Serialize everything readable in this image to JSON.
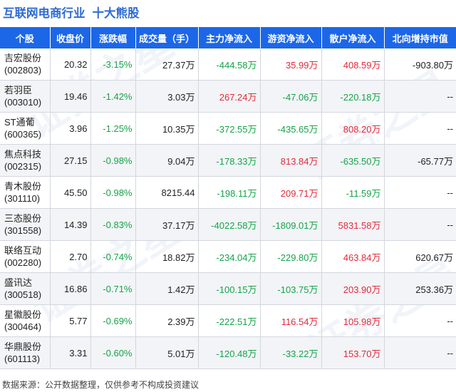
{
  "title": {
    "part1": "互联网电商行业",
    "part2": "十大熊股"
  },
  "colors": {
    "header_bg": "#1c67e8",
    "title": "#2e6bd3",
    "up": "#e2293b",
    "down": "#16a34a"
  },
  "table": {
    "headers": [
      "个股",
      "收盘价",
      "涨跌幅",
      "成交量（手）",
      "主力净流入",
      "游资净流入",
      "散户净流入",
      "北向增持市值"
    ],
    "rows": [
      {
        "name": "吉宏股份",
        "code": "(002803)",
        "close": "20.32",
        "change": "-3.15%",
        "volume": "27.37万",
        "main": "-444.58万",
        "hot": "35.99万",
        "retail": "408.59万",
        "north": "-903.80万"
      },
      {
        "name": "若羽臣",
        "code": "(003010)",
        "close": "19.46",
        "change": "-1.42%",
        "volume": "3.03万",
        "main": "267.24万",
        "hot": "-47.06万",
        "retail": "-220.18万",
        "north": "--"
      },
      {
        "name": "ST通葡",
        "code": "(600365)",
        "close": "3.96",
        "change": "-1.25%",
        "volume": "10.35万",
        "main": "-372.55万",
        "hot": "-435.65万",
        "retail": "808.20万",
        "north": "--"
      },
      {
        "name": "焦点科技",
        "code": "(002315)",
        "close": "27.15",
        "change": "-0.98%",
        "volume": "9.04万",
        "main": "-178.33万",
        "hot": "813.84万",
        "retail": "-635.50万",
        "north": "-65.77万"
      },
      {
        "name": "青木股份",
        "code": "(301110)",
        "close": "45.50",
        "change": "-0.98%",
        "volume": "8215.44",
        "main": "-198.11万",
        "hot": "209.71万",
        "retail": "-11.59万",
        "north": "--"
      },
      {
        "name": "三态股份",
        "code": "(301558)",
        "close": "14.39",
        "change": "-0.83%",
        "volume": "37.17万",
        "main": "-4022.58万",
        "hot": "-1809.01万",
        "retail": "5831.58万",
        "north": "--"
      },
      {
        "name": "联络互动",
        "code": "(002280)",
        "close": "2.70",
        "change": "-0.74%",
        "volume": "18.82万",
        "main": "-234.04万",
        "hot": "-229.80万",
        "retail": "463.84万",
        "north": "620.67万"
      },
      {
        "name": "盛讯达",
        "code": "(300518)",
        "close": "16.86",
        "change": "-0.71%",
        "volume": "1.42万",
        "main": "-100.15万",
        "hot": "-103.75万",
        "retail": "203.90万",
        "north": "253.36万"
      },
      {
        "name": "星徽股份",
        "code": "(300464)",
        "close": "5.77",
        "change": "-0.69%",
        "volume": "2.39万",
        "main": "-222.51万",
        "hot": "116.54万",
        "retail": "105.98万",
        "north": "--"
      },
      {
        "name": "华鼎股份",
        "code": "(601113)",
        "close": "3.31",
        "change": "-0.60%",
        "volume": "5.01万",
        "main": "-120.48万",
        "hot": "-33.22万",
        "retail": "153.70万",
        "north": "--"
      }
    ]
  },
  "source": "数据来源：公开数据整理，仅供参考不构成投资建议",
  "watermark": "证券之星"
}
